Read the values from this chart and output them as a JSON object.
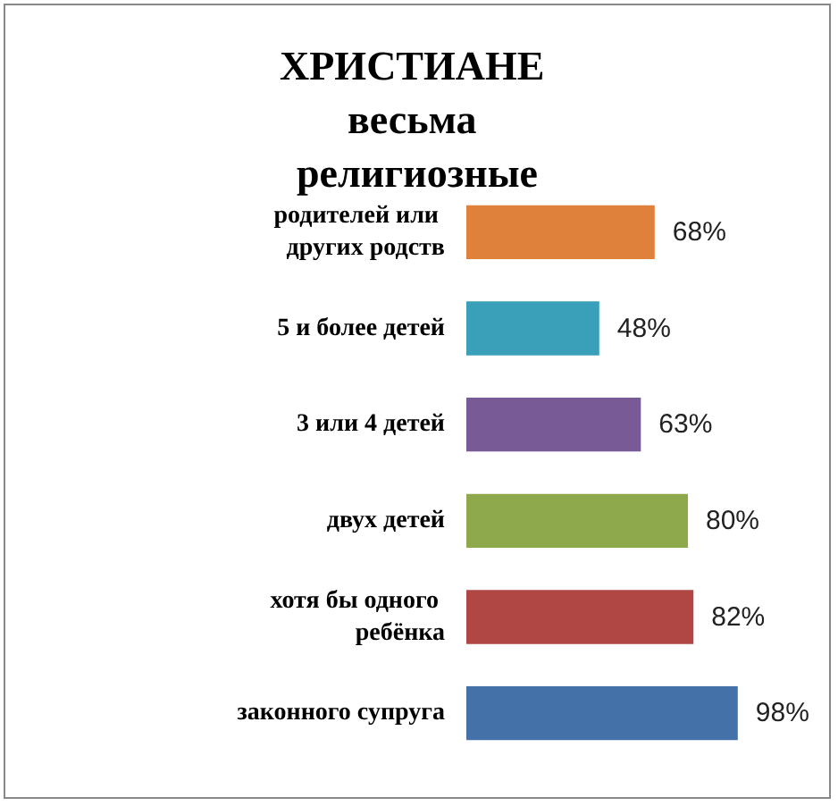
{
  "chart_data": {
    "type": "bar",
    "orientation": "horizontal",
    "title": "ХРИСТИАНЕ весьма религиозные",
    "categories": [
      "родителей или других родств",
      "5 и более детей",
      "3 или 4 детей",
      "двух детей",
      "хотя бы одного ребёнка",
      "законного супруга"
    ],
    "values": [
      68,
      48,
      63,
      80,
      82,
      98
    ],
    "colors": [
      "#e0813b",
      "#3a9fb8",
      "#775a96",
      "#8ea94b",
      "#b04744",
      "#4472a8"
    ],
    "value_labels": [
      "68%",
      "48%",
      "63%",
      "80%",
      "82%",
      "98%"
    ]
  }
}
